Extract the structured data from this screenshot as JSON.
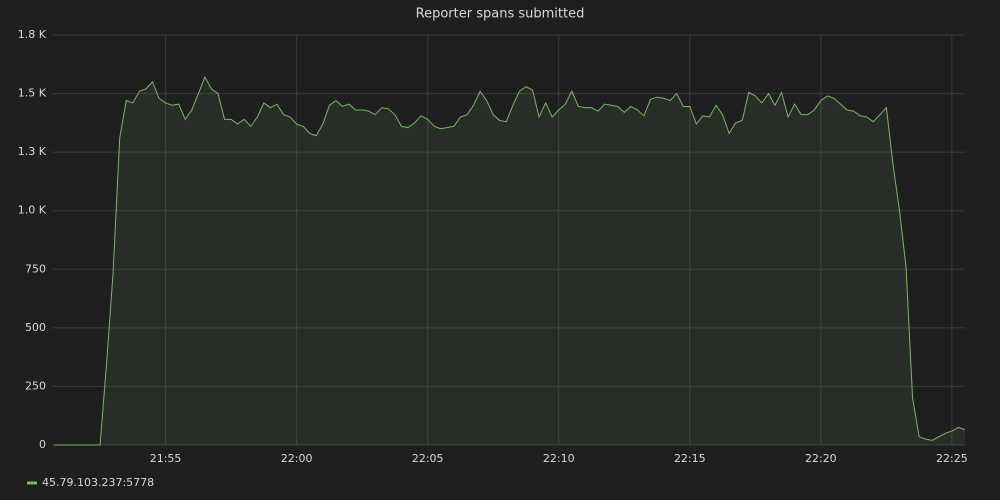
{
  "chart_data": {
    "type": "area",
    "title": "Reporter spans submitted",
    "x": [
      "21:50:45",
      "21:51:00",
      "21:51:15",
      "21:51:30",
      "21:51:45",
      "21:52:00",
      "21:52:15",
      "21:52:30",
      "21:52:45",
      "21:53:00",
      "21:53:15",
      "21:53:30",
      "21:53:45",
      "21:54:00",
      "21:54:15",
      "21:54:30",
      "21:54:45",
      "21:55:00",
      "21:55:15",
      "21:55:30",
      "21:55:45",
      "21:56:00",
      "21:56:15",
      "21:56:30",
      "21:56:45",
      "21:57:00",
      "21:57:15",
      "21:57:30",
      "21:57:45",
      "21:58:00",
      "21:58:15",
      "21:58:30",
      "21:58:45",
      "21:59:00",
      "21:59:15",
      "21:59:30",
      "21:59:45",
      "22:00:00",
      "22:00:15",
      "22:00:30",
      "22:00:45",
      "22:01:00",
      "22:01:15",
      "22:01:30",
      "22:01:45",
      "22:02:00",
      "22:02:15",
      "22:02:30",
      "22:02:45",
      "22:03:00",
      "22:03:15",
      "22:03:30",
      "22:03:45",
      "22:04:00",
      "22:04:15",
      "22:04:30",
      "22:04:45",
      "22:05:00",
      "22:05:15",
      "22:05:30",
      "22:05:45",
      "22:06:00",
      "22:06:15",
      "22:06:30",
      "22:06:45",
      "22:07:00",
      "22:07:15",
      "22:07:30",
      "22:07:45",
      "22:08:00",
      "22:08:15",
      "22:08:30",
      "22:08:45",
      "22:09:00",
      "22:09:15",
      "22:09:30",
      "22:09:45",
      "22:10:00",
      "22:10:15",
      "22:10:30",
      "22:10:45",
      "22:11:00",
      "22:11:15",
      "22:11:30",
      "22:11:45",
      "22:12:00",
      "22:12:15",
      "22:12:30",
      "22:12:45",
      "22:13:00",
      "22:13:15",
      "22:13:30",
      "22:13:45",
      "22:14:00",
      "22:14:15",
      "22:14:30",
      "22:14:45",
      "22:15:00",
      "22:15:15",
      "22:15:30",
      "22:15:45",
      "22:16:00",
      "22:16:15",
      "22:16:30",
      "22:16:45",
      "22:17:00",
      "22:17:15",
      "22:17:30",
      "22:17:45",
      "22:18:00",
      "22:18:15",
      "22:18:30",
      "22:18:45",
      "22:19:00",
      "22:19:15",
      "22:19:30",
      "22:19:45",
      "22:20:00",
      "22:20:15",
      "22:20:30",
      "22:20:45",
      "22:21:00",
      "22:21:15",
      "22:21:30",
      "22:21:45",
      "22:22:00",
      "22:22:15",
      "22:22:30",
      "22:22:45",
      "22:23:00",
      "22:23:15",
      "22:23:30",
      "22:23:45",
      "22:24:00",
      "22:24:15",
      "22:24:30",
      "22:24:45",
      "22:25:00",
      "22:25:15",
      "22:25:30"
    ],
    "series": [
      {
        "name": "45.79.103.237:5778",
        "color": "#7eb26d",
        "values": [
          0,
          0,
          0,
          0,
          0,
          0,
          0,
          0,
          350,
          740,
          1310,
          1470,
          1460,
          1510,
          1520,
          1550,
          1480,
          1460,
          1450,
          1455,
          1390,
          1430,
          1500,
          1570,
          1520,
          1500,
          1390,
          1390,
          1370,
          1390,
          1360,
          1400,
          1460,
          1440,
          1455,
          1410,
          1400,
          1370,
          1360,
          1330,
          1320,
          1370,
          1450,
          1470,
          1445,
          1455,
          1430,
          1430,
          1425,
          1410,
          1440,
          1435,
          1410,
          1360,
          1355,
          1375,
          1405,
          1390,
          1360,
          1350,
          1355,
          1360,
          1400,
          1410,
          1450,
          1510,
          1470,
          1410,
          1385,
          1380,
          1450,
          1510,
          1530,
          1515,
          1400,
          1460,
          1400,
          1430,
          1455,
          1510,
          1445,
          1440,
          1440,
          1425,
          1455,
          1450,
          1445,
          1420,
          1445,
          1430,
          1405,
          1475,
          1485,
          1480,
          1470,
          1500,
          1445,
          1445,
          1370,
          1405,
          1400,
          1450,
          1410,
          1330,
          1375,
          1385,
          1505,
          1490,
          1460,
          1500,
          1450,
          1505,
          1400,
          1455,
          1410,
          1410,
          1430,
          1470,
          1490,
          1480,
          1455,
          1430,
          1425,
          1405,
          1400,
          1380,
          1410,
          1440,
          1200,
          1000,
          760,
          200,
          35,
          25,
          20,
          35,
          50,
          60,
          75,
          65
        ]
      }
    ],
    "xlim": [
      "21:50:40",
      "22:25:30"
    ],
    "xticks": [
      "21:55",
      "22:00",
      "22:05",
      "22:10",
      "22:15",
      "22:20",
      "22:25"
    ],
    "ylim": [
      0,
      1750
    ],
    "yticks": [
      0,
      250,
      500,
      750,
      {
        "value": 1000,
        "label": "1.0 K"
      },
      {
        "value": 1250,
        "label": "1.3 K"
      },
      {
        "value": 1500,
        "label": "1.5 K"
      },
      {
        "value": 1750,
        "label": "1.8 K"
      }
    ],
    "grid": true
  }
}
